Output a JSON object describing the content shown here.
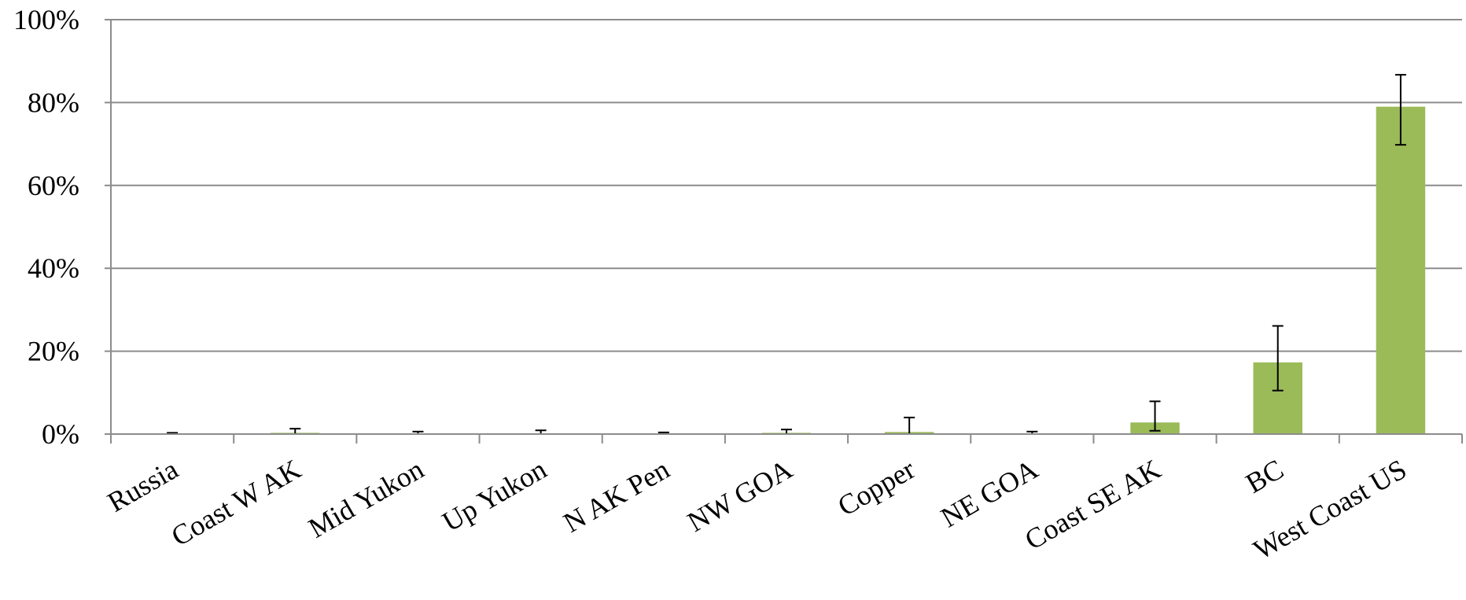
{
  "chart_data": {
    "type": "bar",
    "categories": [
      "Russia",
      "Coast W AK",
      "Mid Yukon",
      "Up Yukon",
      "N AK Pen",
      "NW GOA",
      "Copper",
      "NE GOA",
      "Coast SE AK",
      "BC",
      "West Coast US"
    ],
    "values": [
      0,
      0.3,
      0.1,
      0.2,
      0,
      0.3,
      0.5,
      0.1,
      2.8,
      17.3,
      79.0
    ],
    "error_low": [
      0,
      0,
      0,
      0,
      0,
      0,
      0,
      0,
      0.8,
      10.5,
      69.8
    ],
    "error_high": [
      0.3,
      1.3,
      0.6,
      0.9,
      0.4,
      1.1,
      4.0,
      0.6,
      7.9,
      26.1,
      86.7
    ],
    "yticks": [
      "0%",
      "20%",
      "40%",
      "60%",
      "80%",
      "100%"
    ],
    "ylim": [
      0,
      100
    ],
    "grid": true,
    "bar_color": "#9bbb59",
    "title": "",
    "xlabel": "",
    "ylabel": ""
  }
}
